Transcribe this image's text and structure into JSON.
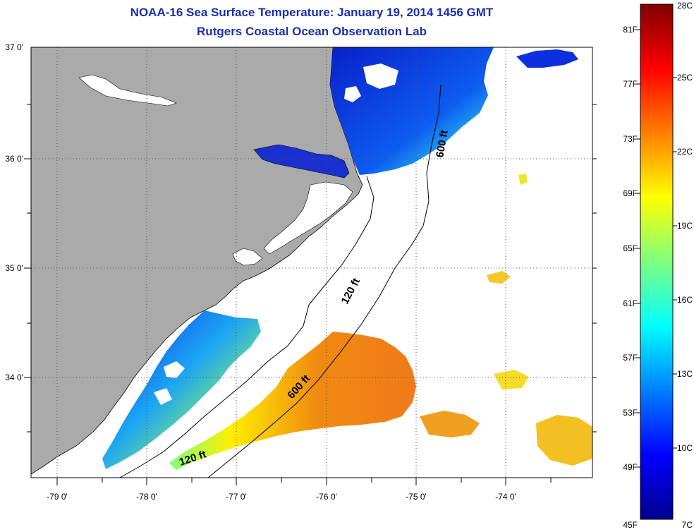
{
  "title": {
    "line1": "NOAA-16 Sea Surface Temperature:  January 19, 2014 1456 GMT",
    "line2": "Rutgers Coastal Ocean Observation Lab"
  },
  "map": {
    "lon_labels": [
      "-79 0'",
      "-78 0'",
      "-77 0'",
      "-76 0'",
      "-75 0'",
      "-74 0'"
    ],
    "lat_labels": [
      "37 0'",
      "36 0'",
      "35 0'",
      "34 0'"
    ],
    "contours": {
      "label_120_lower": "120 ft",
      "label_120_upper": "120 ft",
      "label_600_lower": "600 ft",
      "label_600_upper": "600 ft"
    },
    "colors": {
      "land": "#aaaaaa",
      "no_data": "#ffffff"
    }
  },
  "colorbar": {
    "celsius": [
      "28C",
      "25C",
      "22C",
      "19C",
      "16C",
      "13C",
      "10C",
      "7C"
    ],
    "fahrenheit": [
      "81F",
      "77F",
      "73F",
      "69F",
      "65F",
      "61F",
      "57F",
      "53F",
      "49F",
      "45F"
    ],
    "colormap": [
      "#00008f",
      "#0000ff",
      "#007fff",
      "#00ffff",
      "#7fff7f",
      "#ffff00",
      "#ff7f00",
      "#ff0000",
      "#7f0000"
    ]
  }
}
